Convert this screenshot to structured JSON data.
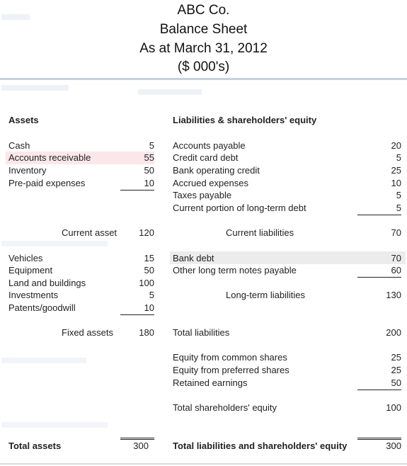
{
  "header": {
    "company": "ABC Co.",
    "title": "Balance Sheet",
    "date": "As at March 31, 2012",
    "units": "($ 000's)"
  },
  "assets": {
    "heading": "Assets",
    "current": [
      {
        "label": "Cash",
        "value": "5"
      },
      {
        "label": "Accounts receivable",
        "value": "55"
      },
      {
        "label": "Inventory",
        "value": "50"
      },
      {
        "label": "Pre-paid expenses",
        "value": "10"
      }
    ],
    "current_total_label": "Current asset",
    "current_total": "120",
    "fixed": [
      {
        "label": "Vehicles",
        "value": "15"
      },
      {
        "label": "Equipment",
        "value": "50"
      },
      {
        "label": "Land and buildings",
        "value": "100"
      },
      {
        "label": "Investments",
        "value": "5"
      },
      {
        "label": "Patents/goodwill",
        "value": "10"
      }
    ],
    "fixed_total_label": "Fixed assets",
    "fixed_total": "180",
    "total_label": "Total assets",
    "total": "300"
  },
  "liabilities": {
    "heading": "Liabilities & shareholders' equity",
    "current": [
      {
        "label": "Accounts payable",
        "value": "20"
      },
      {
        "label": "Credit card debt",
        "value": "5"
      },
      {
        "label": "Bank operating credit",
        "value": "25"
      },
      {
        "label": "Accrued expenses",
        "value": "10"
      },
      {
        "label": "Taxes payable",
        "value": "5"
      },
      {
        "label": "Current portion of long-term debt",
        "value": "5"
      }
    ],
    "current_total_label": "Current liabilities",
    "current_total": "70",
    "long_term": [
      {
        "label": "Bank debt",
        "value": "70"
      },
      {
        "label": "Other long term notes payable",
        "value": "60"
      }
    ],
    "long_term_total_label": "Long-term liabilities",
    "long_term_total": "130",
    "total_liabilities_label": "Total liabilities",
    "total_liabilities": "200",
    "equity": [
      {
        "label": "Equity from common shares",
        "value": "25"
      },
      {
        "label": "Equity from preferred shares",
        "value": "25"
      },
      {
        "label": "Retained earnings",
        "value": "50"
      }
    ],
    "equity_total_label": "Total shareholders' equity",
    "equity_total": "100",
    "grand_total_label": "Total liabilities and shareholders' equity",
    "grand_total": "300"
  },
  "colors": {
    "header_rule": "#c9d0dc",
    "row_shade": "#ececec",
    "highlight": "#f4c6cc"
  }
}
